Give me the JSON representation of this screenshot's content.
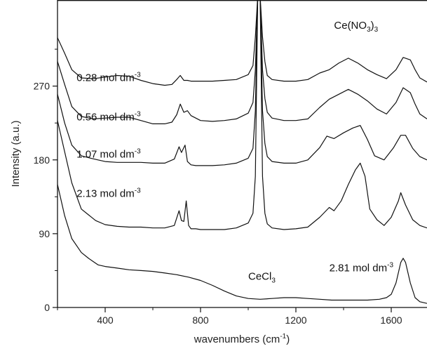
{
  "chart_data": {
    "type": "line",
    "xlabel": {
      "text": "wavenumbers (cm",
      "sup": "-1",
      "tail": ")"
    },
    "ylabel": "Intensity (a.u.)",
    "xlim": [
      200,
      1750
    ],
    "ylim": [
      0,
      375
    ],
    "xticks": [
      400,
      800,
      1200,
      1600
    ],
    "yticks": [
      0,
      90,
      180,
      270
    ],
    "grid": false,
    "annotations": [
      {
        "id": "cenitrate",
        "base": "Ce(NO",
        "sub": "3",
        "mid": ")",
        "sub2": "3",
        "x": 1360,
        "y": 340
      },
      {
        "id": "c028",
        "base": "0.28 mol dm",
        "sup": "-3",
        "x": 280,
        "y": 276
      },
      {
        "id": "c056",
        "base": "0.56 mol dm",
        "sup": "-3",
        "x": 280,
        "y": 228
      },
      {
        "id": "c107",
        "base": "1.07 mol dm",
        "sup": "-3",
        "x": 280,
        "y": 183
      },
      {
        "id": "c213",
        "base": "2.13 mol dm",
        "sup": "-3",
        "x": 280,
        "y": 135
      },
      {
        "id": "cecl3",
        "base": "CeCl",
        "sub": "3",
        "x": 1000,
        "y": 34
      },
      {
        "id": "c281",
        "base": "2.81 mol dm",
        "sup": "-3",
        "x": 1340,
        "y": 44
      }
    ],
    "series": [
      {
        "id": "s028",
        "x": [
          200,
          230,
          260,
          300,
          350,
          400,
          450,
          500,
          550,
          600,
          650,
          680,
          700,
          715,
          730,
          745,
          760,
          800,
          850,
          900,
          950,
          1000,
          1020,
          1030,
          1040,
          1050,
          1060,
          1070,
          1080,
          1100,
          1150,
          1200,
          1250,
          1300,
          1340,
          1380,
          1420,
          1460,
          1500,
          1540,
          1580,
          1620,
          1650,
          1680,
          1700,
          1720,
          1750
        ],
        "y": [
          329,
          310,
          290,
          280,
          279,
          281,
          283,
          282,
          277,
          273,
          271,
          272,
          278,
          283,
          277,
          277,
          276,
          276,
          276,
          277,
          278,
          284,
          295,
          330,
          380,
          380,
          330,
          300,
          283,
          278,
          276,
          276,
          278,
          286,
          290,
          298,
          304,
          298,
          290,
          284,
          279,
          290,
          305,
          302,
          290,
          280,
          275
        ]
      },
      {
        "id": "s056",
        "x": [
          200,
          230,
          260,
          300,
          350,
          400,
          450,
          500,
          550,
          600,
          650,
          680,
          700,
          715,
          730,
          745,
          760,
          800,
          850,
          900,
          950,
          1000,
          1020,
          1030,
          1040,
          1050,
          1060,
          1070,
          1080,
          1100,
          1150,
          1200,
          1250,
          1300,
          1340,
          1380,
          1420,
          1460,
          1500,
          1540,
          1580,
          1620,
          1650,
          1680,
          1700,
          1720,
          1750
        ],
        "y": [
          300,
          272,
          245,
          233,
          230,
          231,
          232,
          232,
          228,
          224,
          224,
          226,
          235,
          248,
          238,
          240,
          234,
          228,
          227,
          228,
          230,
          237,
          250,
          290,
          380,
          380,
          290,
          255,
          238,
          231,
          228,
          228,
          230,
          244,
          254,
          260,
          266,
          260,
          252,
          242,
          236,
          250,
          268,
          262,
          248,
          236,
          230
        ]
      },
      {
        "id": "s107",
        "x": [
          200,
          230,
          260,
          300,
          340,
          370,
          400,
          450,
          500,
          550,
          600,
          650,
          690,
          710,
          720,
          735,
          745,
          760,
          780,
          800,
          850,
          900,
          950,
          1000,
          1020,
          1030,
          1040,
          1050,
          1060,
          1070,
          1080,
          1100,
          1150,
          1200,
          1250,
          1300,
          1330,
          1360,
          1400,
          1440,
          1470,
          1500,
          1530,
          1570,
          1610,
          1640,
          1660,
          1690,
          1720,
          1750
        ],
        "y": [
          260,
          225,
          198,
          185,
          182,
          180,
          178,
          177,
          177,
          177,
          176,
          176,
          181,
          196,
          189,
          198,
          178,
          174,
          173,
          173,
          173,
          174,
          176,
          182,
          194,
          240,
          380,
          380,
          240,
          200,
          184,
          178,
          176,
          176,
          180,
          195,
          209,
          206,
          213,
          219,
          222,
          205,
          185,
          180,
          195,
          210,
          210,
          194,
          184,
          180
        ]
      },
      {
        "id": "s213",
        "x": [
          200,
          230,
          260,
          300,
          330,
          360,
          400,
          450,
          500,
          550,
          600,
          650,
          690,
          710,
          720,
          730,
          740,
          750,
          760,
          780,
          800,
          850,
          900,
          950,
          1000,
          1020,
          1030,
          1040,
          1050,
          1060,
          1070,
          1080,
          1100,
          1150,
          1200,
          1250,
          1300,
          1340,
          1360,
          1390,
          1420,
          1450,
          1470,
          1490,
          1510,
          1540,
          1570,
          1600,
          1630,
          1640,
          1660,
          1690,
          1720,
          1750
        ],
        "y": [
          228,
          190,
          152,
          120,
          113,
          106,
          101,
          99,
          98,
          98,
          97,
          97,
          100,
          118,
          106,
          105,
          130,
          100,
          96,
          96,
          95,
          95,
          95,
          97,
          103,
          115,
          160,
          380,
          380,
          160,
          115,
          102,
          97,
          95,
          96,
          98,
          110,
          122,
          118,
          130,
          150,
          168,
          176,
          160,
          120,
          107,
          100,
          110,
          130,
          140,
          125,
          107,
          100,
          97
        ]
      },
      {
        "id": "scecl3",
        "x": [
          200,
          230,
          260,
          300,
          330,
          350,
          370,
          400,
          450,
          500,
          550,
          600,
          650,
          700,
          750,
          800,
          850,
          900,
          950,
          1000,
          1050,
          1100,
          1150,
          1200,
          1250,
          1300,
          1350,
          1400,
          1450,
          1500,
          1550,
          1580,
          1600,
          1620,
          1640,
          1650,
          1660,
          1680,
          1700,
          1720,
          1750
        ],
        "y": [
          150,
          112,
          84,
          67,
          60,
          56,
          52,
          50,
          48,
          46,
          45,
          44,
          42,
          40,
          37,
          33,
          27,
          20,
          14,
          11,
          10,
          11,
          12,
          12,
          11,
          10,
          9,
          9,
          9,
          9,
          10,
          12,
          16,
          30,
          55,
          60,
          55,
          30,
          12,
          7,
          5
        ]
      }
    ]
  }
}
